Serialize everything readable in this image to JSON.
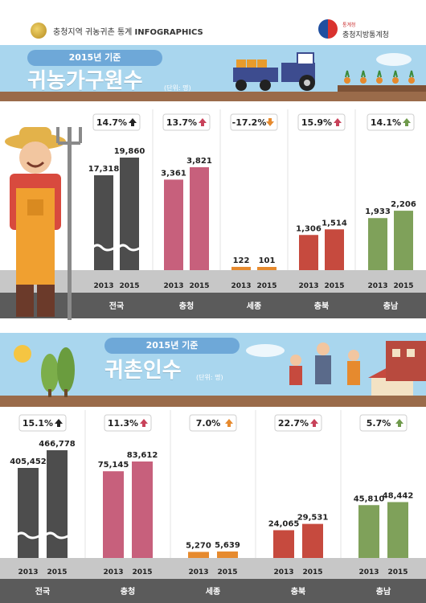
{
  "header": {
    "title_prefix": "충청지역 귀농귀촌 통계",
    "title_bold": "INFOGRAPHICS",
    "agency_small": "통계청",
    "agency": "충청지방통계청"
  },
  "section1": {
    "pill": "2015년 기준",
    "title": "귀농가구원수",
    "unit": "(단위: 명)"
  },
  "section2": {
    "pill": "2015년 기준",
    "title": "귀촌인수",
    "unit": "(단위: 명)"
  },
  "colors": {
    "sky": "#a9d6ee",
    "ground": "#9a6b4a",
    "dark_bar": "#4d4d4d",
    "pink_bar": "#c7607c",
    "orange_bar": "#e68a2e",
    "red_bar": "#c64a3e",
    "green_bar": "#7fa15a",
    "pct_up_red": "#c8425a",
    "pct_down_orange": "#e68a2e",
    "pct_up_green": "#6f9a4c"
  },
  "chart_data": [
    {
      "type": "bar",
      "title": "귀농가구원수",
      "unit": "(단위: 명)",
      "categories": [
        "전국",
        "충청",
        "세종",
        "충북",
        "충남"
      ],
      "years": [
        "2013",
        "2015"
      ],
      "series": [
        {
          "name": "2013",
          "values": [
            17318,
            3361,
            122,
            1306,
            1933
          ]
        },
        {
          "name": "2015",
          "values": [
            19860,
            3821,
            101,
            1514,
            2206
          ]
        }
      ],
      "value_labels": {
        "2013": [
          "17,318",
          "3,361",
          "122",
          "1,306",
          "1,933"
        ],
        "2015": [
          "19,860",
          "3,821",
          "101",
          "1,514",
          "2,206"
        ]
      },
      "change_pct": [
        "14.7%",
        "13.7%",
        "-17.2%",
        "15.9%",
        "14.1%"
      ],
      "change_dir": [
        "up",
        "up",
        "down",
        "up",
        "up"
      ],
      "bar_colors": [
        "#4d4d4d",
        "#c7607c",
        "#e68a2e",
        "#c64a3e",
        "#7fa15a"
      ],
      "arrow_colors": [
        "#222222",
        "#c8425a",
        "#e68a2e",
        "#c8425a",
        "#6f9a4c"
      ],
      "national_axis_break": true
    },
    {
      "type": "bar",
      "title": "귀촌인수",
      "unit": "(단위: 명)",
      "categories": [
        "전국",
        "충청",
        "세종",
        "충북",
        "충남"
      ],
      "years": [
        "2013",
        "2015"
      ],
      "series": [
        {
          "name": "2013",
          "values": [
            405452,
            75145,
            5270,
            24065,
            45810
          ]
        },
        {
          "name": "2015",
          "values": [
            466778,
            83612,
            5639,
            29531,
            48442
          ]
        }
      ],
      "value_labels": {
        "2013": [
          "405,452",
          "75,145",
          "5,270",
          "24,065",
          "45,810"
        ],
        "2015": [
          "466,778",
          "83,612",
          "5,639",
          "29,531",
          "48,442"
        ]
      },
      "change_pct": [
        "15.1%",
        "11.3%",
        "7.0%",
        "22.7%",
        "5.7%"
      ],
      "change_dir": [
        "up",
        "up",
        "up",
        "up",
        "up"
      ],
      "bar_colors": [
        "#4d4d4d",
        "#c7607c",
        "#e68a2e",
        "#c64a3e",
        "#7fa15a"
      ],
      "arrow_colors": [
        "#222222",
        "#c8425a",
        "#e68a2e",
        "#c8425a",
        "#6f9a4c"
      ],
      "national_axis_break": true
    }
  ]
}
